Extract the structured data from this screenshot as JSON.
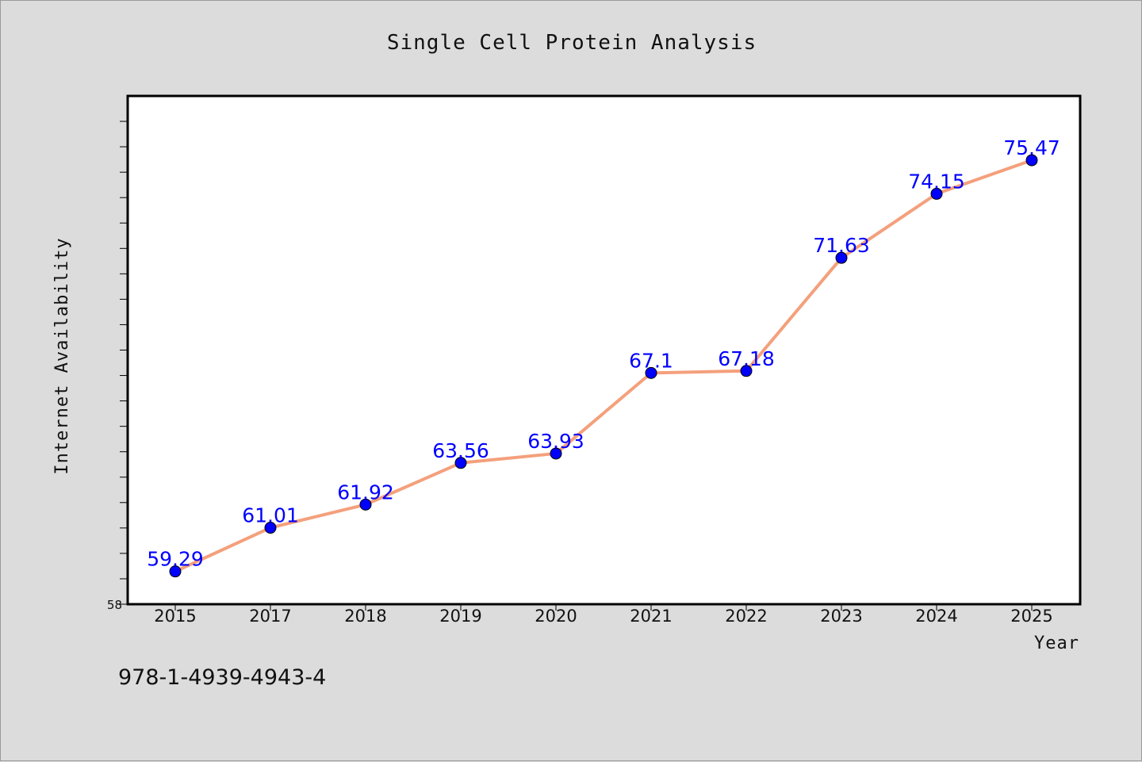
{
  "footer_text": "978-1-4939-4943-4",
  "colors": {
    "background": "#dcdcdc",
    "plot_background": "#ffffff",
    "line": "#f4a07c",
    "marker": "#0000ff",
    "data_label": "#0000ff"
  },
  "chart_data": {
    "type": "line",
    "title": "Single Cell Protein Analysis",
    "xlabel": "Year",
    "ylabel": "Internet Availability",
    "categories": [
      "2015",
      "2017",
      "2018",
      "2019",
      "2020",
      "2021",
      "2022",
      "2023",
      "2024",
      "2025"
    ],
    "series": [
      {
        "values": [
          59.29,
          61.01,
          61.92,
          63.56,
          63.93,
          67.1,
          67.18,
          71.63,
          74.15,
          75.47
        ],
        "labels": [
          "59.29",
          "61.01",
          "61.92",
          "63.56",
          "63.93",
          "67.1",
          "67.18",
          "71.63",
          "74.15",
          "75.47"
        ]
      }
    ],
    "y_tick_labels": [
      "58"
    ],
    "ylim": [
      58,
      78
    ],
    "grid": false,
    "legend": "none"
  }
}
